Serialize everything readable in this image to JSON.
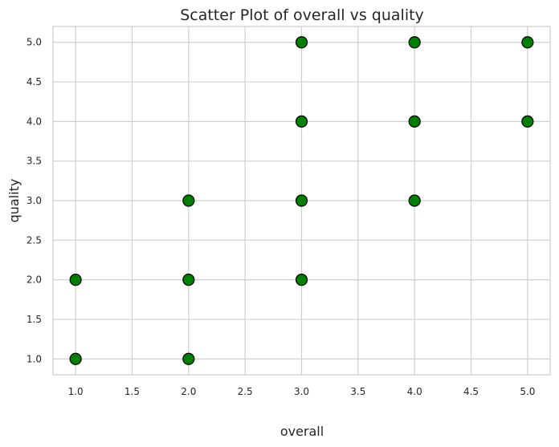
{
  "chart_data": {
    "type": "scatter",
    "title": "Scatter Plot of overall vs quality",
    "xlabel": "overall",
    "ylabel": "quality",
    "xlim": [
      0.8,
      5.2
    ],
    "ylim": [
      0.8,
      5.2
    ],
    "xticks": [
      "1.0",
      "1.5",
      "2.0",
      "2.5",
      "3.0",
      "3.5",
      "4.0",
      "4.5",
      "5.0"
    ],
    "yticks": [
      "1.0",
      "1.5",
      "2.0",
      "2.5",
      "3.0",
      "3.5",
      "4.0",
      "4.5",
      "5.0"
    ],
    "grid": true,
    "series": [
      {
        "color": "#008000",
        "edge_color": "#000000",
        "points": [
          {
            "x": 1.0,
            "y": 1.0
          },
          {
            "x": 1.0,
            "y": 2.0
          },
          {
            "x": 2.0,
            "y": 1.0
          },
          {
            "x": 2.0,
            "y": 2.0
          },
          {
            "x": 2.0,
            "y": 3.0
          },
          {
            "x": 3.0,
            "y": 2.0
          },
          {
            "x": 3.0,
            "y": 3.0
          },
          {
            "x": 3.0,
            "y": 4.0
          },
          {
            "x": 3.0,
            "y": 5.0
          },
          {
            "x": 4.0,
            "y": 3.0
          },
          {
            "x": 4.0,
            "y": 4.0
          },
          {
            "x": 4.0,
            "y": 5.0
          },
          {
            "x": 5.0,
            "y": 4.0
          },
          {
            "x": 5.0,
            "y": 5.0
          }
        ]
      }
    ]
  }
}
